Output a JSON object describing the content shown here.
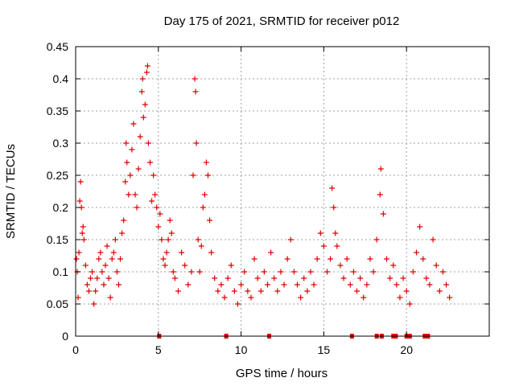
{
  "chart_data": {
    "type": "scatter",
    "title": "Day 175 of 2021, SRMTID for receiver p012",
    "xlabel": "GPS time / hours",
    "ylabel": "SRMTID / TECUs",
    "xlim": [
      0,
      25
    ],
    "ylim": [
      0,
      0.45
    ],
    "xticks": [
      0,
      5,
      10,
      15,
      20
    ],
    "xtick_labels": [
      "0",
      "5",
      "10",
      "15",
      "20"
    ],
    "yticks": [
      0,
      0.05,
      0.1,
      0.15,
      0.2,
      0.25,
      0.3,
      0.35,
      0.4,
      0.45
    ],
    "ytick_labels": [
      "0",
      "0.05",
      "0.1",
      "0.15",
      "0.2",
      "0.25",
      "0.3",
      "0.35",
      "0.4",
      "0.45"
    ],
    "grid": true,
    "marker": "+",
    "color": "#e00000",
    "series": [
      {
        "name": "SRMTID",
        "points": [
          [
            0.05,
            0.12
          ],
          [
            0.1,
            0.1
          ],
          [
            0.15,
            0.06
          ],
          [
            0.2,
            0.13
          ],
          [
            0.25,
            0.21
          ],
          [
            0.3,
            0.24
          ],
          [
            0.35,
            0.2
          ],
          [
            0.4,
            0.16
          ],
          [
            0.45,
            0.17
          ],
          [
            0.5,
            0.15
          ],
          [
            0.6,
            0.11
          ],
          [
            0.7,
            0.08
          ],
          [
            0.8,
            0.07
          ],
          [
            0.9,
            0.09
          ],
          [
            1.0,
            0.1
          ],
          [
            1.1,
            0.05
          ],
          [
            1.2,
            0.07
          ],
          [
            1.3,
            0.09
          ],
          [
            1.4,
            0.12
          ],
          [
            1.5,
            0.13
          ],
          [
            1.6,
            0.1
          ],
          [
            1.7,
            0.08
          ],
          [
            1.8,
            0.11
          ],
          [
            1.9,
            0.14
          ],
          [
            2.0,
            0.09
          ],
          [
            2.1,
            0.06
          ],
          [
            2.2,
            0.12
          ],
          [
            2.3,
            0.13
          ],
          [
            2.4,
            0.15
          ],
          [
            2.5,
            0.1
          ],
          [
            2.6,
            0.08
          ],
          [
            2.7,
            0.12
          ],
          [
            2.8,
            0.16
          ],
          [
            2.9,
            0.18
          ],
          [
            3.0,
            0.24
          ],
          [
            3.05,
            0.3
          ],
          [
            3.1,
            0.27
          ],
          [
            3.2,
            0.22
          ],
          [
            3.3,
            0.25
          ],
          [
            3.4,
            0.29
          ],
          [
            3.5,
            0.33
          ],
          [
            3.6,
            0.22
          ],
          [
            3.7,
            0.2
          ],
          [
            3.8,
            0.26
          ],
          [
            3.9,
            0.31
          ],
          [
            4.0,
            0.38
          ],
          [
            4.05,
            0.4
          ],
          [
            4.1,
            0.34
          ],
          [
            4.2,
            0.36
          ],
          [
            4.3,
            0.41
          ],
          [
            4.35,
            0.42
          ],
          [
            4.4,
            0.3
          ],
          [
            4.5,
            0.27
          ],
          [
            4.6,
            0.21
          ],
          [
            4.7,
            0.25
          ],
          [
            4.8,
            0.22
          ],
          [
            4.9,
            0.2
          ],
          [
            5.0,
            0.17
          ],
          [
            5.1,
            0.19
          ],
          [
            5.2,
            0.15
          ],
          [
            5.3,
            0.12
          ],
          [
            5.4,
            0.11
          ],
          [
            5.5,
            0.13
          ],
          [
            5.6,
            0.15
          ],
          [
            5.7,
            0.18
          ],
          [
            5.8,
            0.16
          ],
          [
            5.9,
            0.1
          ],
          [
            6.0,
            0.09
          ],
          [
            6.2,
            0.07
          ],
          [
            6.4,
            0.13
          ],
          [
            6.6,
            0.11
          ],
          [
            6.8,
            0.08
          ],
          [
            7.0,
            0.1
          ],
          [
            7.1,
            0.25
          ],
          [
            7.2,
            0.4
          ],
          [
            7.25,
            0.38
          ],
          [
            7.3,
            0.3
          ],
          [
            7.4,
            0.15
          ],
          [
            7.5,
            0.1
          ],
          [
            7.6,
            0.14
          ],
          [
            7.7,
            0.2
          ],
          [
            7.8,
            0.22
          ],
          [
            7.9,
            0.27
          ],
          [
            8.0,
            0.25
          ],
          [
            8.1,
            0.18
          ],
          [
            8.2,
            0.13
          ],
          [
            8.4,
            0.09
          ],
          [
            8.6,
            0.07
          ],
          [
            8.8,
            0.08
          ],
          [
            9.0,
            0.06
          ],
          [
            9.2,
            0.09
          ],
          [
            9.4,
            0.11
          ],
          [
            9.6,
            0.07
          ],
          [
            9.8,
            0.05
          ],
          [
            10.0,
            0.08
          ],
          [
            10.2,
            0.1
          ],
          [
            10.4,
            0.07
          ],
          [
            10.6,
            0.06
          ],
          [
            10.8,
            0.12
          ],
          [
            11.0,
            0.09
          ],
          [
            11.2,
            0.07
          ],
          [
            11.4,
            0.1
          ],
          [
            11.6,
            0.08
          ],
          [
            11.8,
            0.13
          ],
          [
            12.0,
            0.09
          ],
          [
            12.2,
            0.07
          ],
          [
            12.4,
            0.1
          ],
          [
            12.6,
            0.08
          ],
          [
            12.8,
            0.12
          ],
          [
            13.0,
            0.15
          ],
          [
            13.2,
            0.1
          ],
          [
            13.4,
            0.08
          ],
          [
            13.6,
            0.06
          ],
          [
            13.8,
            0.09
          ],
          [
            14.0,
            0.07
          ],
          [
            14.2,
            0.1
          ],
          [
            14.4,
            0.08
          ],
          [
            14.6,
            0.12
          ],
          [
            14.8,
            0.16
          ],
          [
            15.0,
            0.14
          ],
          [
            15.2,
            0.1
          ],
          [
            15.4,
            0.12
          ],
          [
            15.5,
            0.23
          ],
          [
            15.6,
            0.2
          ],
          [
            15.7,
            0.16
          ],
          [
            15.8,
            0.14
          ],
          [
            16.0,
            0.11
          ],
          [
            16.2,
            0.09
          ],
          [
            16.4,
            0.12
          ],
          [
            16.6,
            0.08
          ],
          [
            16.8,
            0.1
          ],
          [
            17.0,
            0.07
          ],
          [
            17.2,
            0.09
          ],
          [
            17.4,
            0.06
          ],
          [
            17.6,
            0.08
          ],
          [
            17.8,
            0.12
          ],
          [
            18.0,
            0.1
          ],
          [
            18.2,
            0.15
          ],
          [
            18.4,
            0.22
          ],
          [
            18.45,
            0.26
          ],
          [
            18.6,
            0.19
          ],
          [
            18.8,
            0.12
          ],
          [
            19.0,
            0.09
          ],
          [
            19.2,
            0.11
          ],
          [
            19.4,
            0.08
          ],
          [
            19.6,
            0.06
          ],
          [
            19.8,
            0.09
          ],
          [
            20.0,
            0.07
          ],
          [
            20.2,
            0.05
          ],
          [
            20.4,
            0.1
          ],
          [
            20.6,
            0.13
          ],
          [
            20.8,
            0.17
          ],
          [
            21.0,
            0.12
          ],
          [
            21.2,
            0.09
          ],
          [
            21.4,
            0.08
          ],
          [
            21.6,
            0.15
          ],
          [
            21.8,
            0.11
          ],
          [
            22.0,
            0.07
          ],
          [
            22.2,
            0.1
          ],
          [
            22.4,
            0.08
          ],
          [
            22.6,
            0.06
          ]
        ]
      },
      {
        "name": "zero markers",
        "points": [
          [
            5.05,
            0
          ],
          [
            9.1,
            0
          ],
          [
            11.7,
            0
          ],
          [
            16.7,
            0
          ],
          [
            18.2,
            0
          ],
          [
            18.5,
            0
          ],
          [
            19.2,
            0
          ],
          [
            19.35,
            0
          ],
          [
            20.0,
            0
          ],
          [
            20.2,
            0
          ],
          [
            21.1,
            0
          ],
          [
            21.3,
            0
          ]
        ]
      }
    ]
  }
}
